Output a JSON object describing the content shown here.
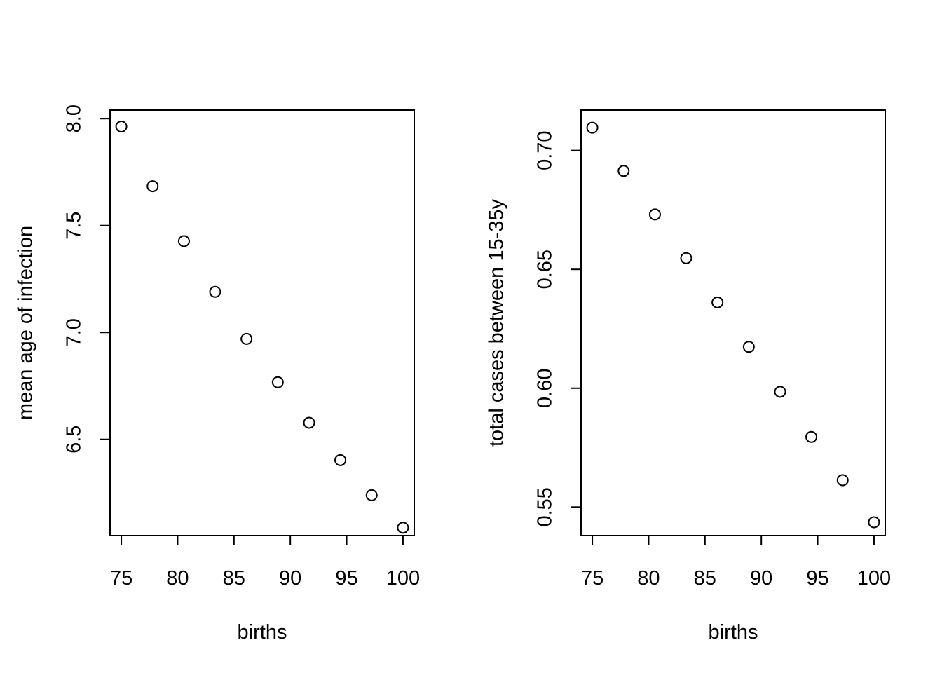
{
  "chart_data": [
    {
      "type": "scatter",
      "xlabel": "births",
      "ylabel": "mean age of infection",
      "xlim": [
        74,
        101
      ],
      "ylim": [
        6.05,
        8.04
      ],
      "xticks": [
        75,
        80,
        85,
        90,
        95,
        100
      ],
      "xtick_labels": [
        "75",
        "80",
        "85",
        "90",
        "95",
        "100"
      ],
      "yticks": [
        6.5,
        7.0,
        7.5,
        8.0
      ],
      "ytick_labels": [
        "6.5",
        "7.0",
        "7.5",
        "8.0"
      ],
      "grid": false,
      "marker": "open-circle",
      "x": [
        75.0,
        77.78,
        80.56,
        83.33,
        86.11,
        88.89,
        91.67,
        94.44,
        97.22,
        100.0
      ],
      "y": [
        7.963,
        7.684,
        7.427,
        7.19,
        6.97,
        6.767,
        6.578,
        6.403,
        6.239,
        6.087
      ]
    },
    {
      "type": "scatter",
      "xlabel": "births",
      "ylabel": "total cases between 15-35y",
      "xlim": [
        74,
        101
      ],
      "ylim": [
        0.538,
        0.717
      ],
      "xticks": [
        75,
        80,
        85,
        90,
        95,
        100
      ],
      "xtick_labels": [
        "75",
        "80",
        "85",
        "90",
        "95",
        "100"
      ],
      "yticks": [
        0.55,
        0.6,
        0.65,
        0.7
      ],
      "ytick_labels": [
        "0.55",
        "0.60",
        "0.65",
        "0.70"
      ],
      "grid": false,
      "marker": "open-circle",
      "x": [
        75.0,
        77.78,
        80.56,
        83.33,
        86.11,
        88.89,
        91.67,
        94.44,
        97.22,
        100.0
      ],
      "y": [
        0.7096,
        0.6914,
        0.6731,
        0.6547,
        0.6361,
        0.6174,
        0.5985,
        0.5795,
        0.5613,
        0.5436
      ]
    }
  ]
}
